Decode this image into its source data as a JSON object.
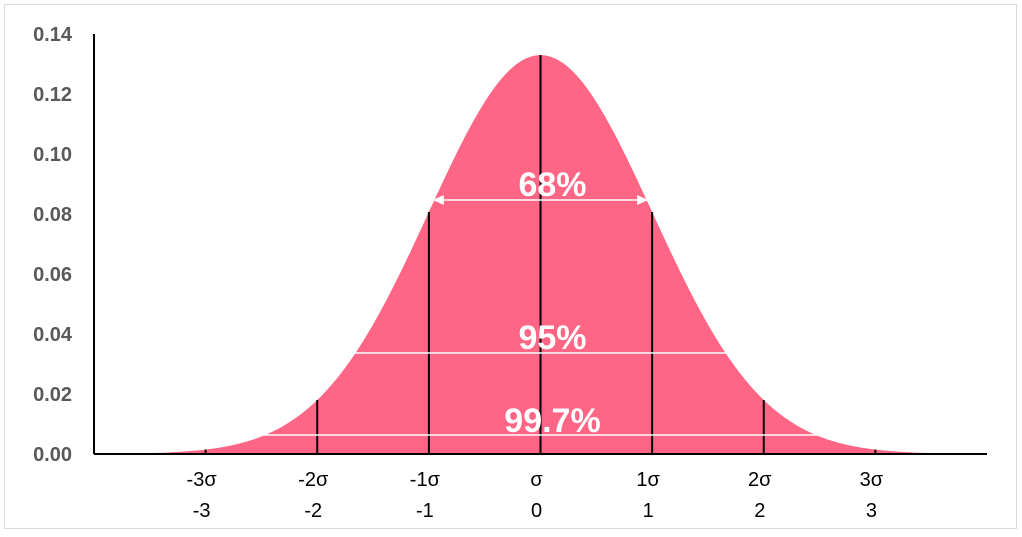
{
  "chart_data": {
    "type": "area",
    "title": "",
    "xlabel": "",
    "ylabel": "",
    "distribution": "normal",
    "mean": 0,
    "std": 3,
    "x_range": [
      -12,
      12
    ],
    "ylim": [
      0,
      0.14
    ],
    "y_ticks": [
      "0.00",
      "0.02",
      "0.04",
      "0.06",
      "0.08",
      "0.10",
      "0.12",
      "0.14"
    ],
    "sigma_lines": [
      -9,
      -6,
      -3,
      0,
      3,
      6,
      9
    ],
    "x_tick_labels": [
      {
        "sigma": "-3σ",
        "value": "-3"
      },
      {
        "sigma": "-2σ",
        "value": "-2"
      },
      {
        "sigma": "-1σ",
        "value": "-1"
      },
      {
        "sigma": "σ",
        "value": "0"
      },
      {
        "sigma": "1σ",
        "value": "1"
      },
      {
        "sigma": "2σ",
        "value": "2"
      },
      {
        "sigma": "3σ",
        "value": "3"
      }
    ],
    "intervals": [
      {
        "label": "68%",
        "from": -3,
        "to": 3
      },
      {
        "label": "95%",
        "from": -6,
        "to": 6
      },
      {
        "label": "99.7%",
        "from": -9,
        "to": 9
      }
    ],
    "colors": {
      "fill": "#ff6585",
      "lines": "#000000",
      "arrows": "#ffffff",
      "axis_text": "#595959"
    },
    "grid": false,
    "legend": "none"
  }
}
